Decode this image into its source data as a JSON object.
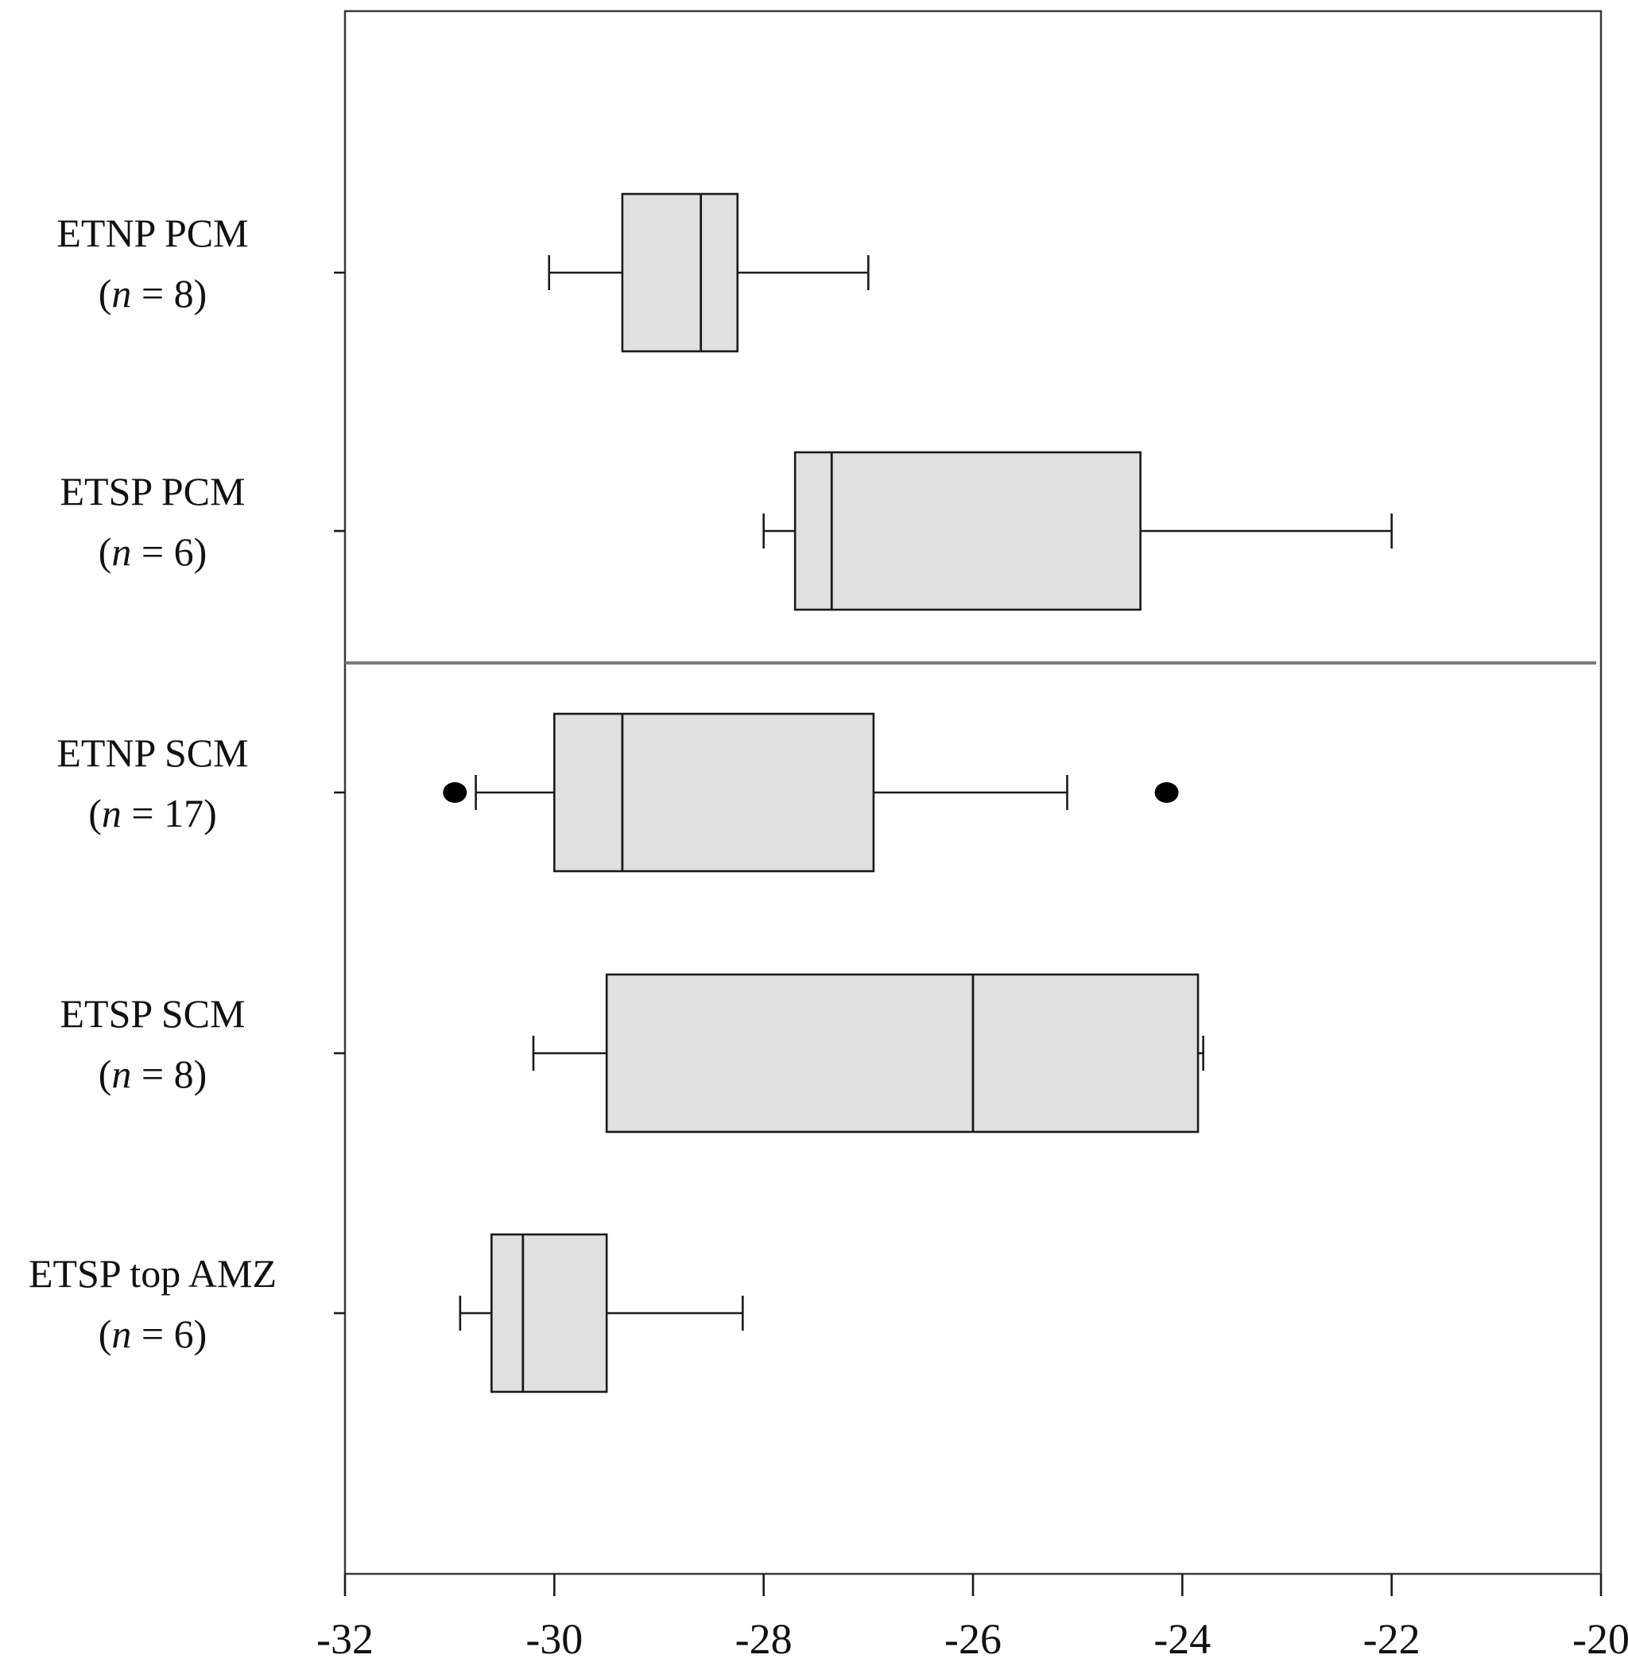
{
  "chart_data": {
    "type": "boxplot",
    "orientation": "horizontal",
    "xlim": [
      -32,
      -20
    ],
    "xticks": [
      -32,
      -30,
      -28,
      -26,
      -24,
      -22,
      -20
    ],
    "xtick_labels": [
      "-32",
      "-30",
      "-28",
      "-26",
      "-24",
      "-22",
      "-20"
    ],
    "grid": false,
    "groups": [
      {
        "label": "ETNP PCM",
        "n_text": "= 8)",
        "whisker_low": -30.05,
        "q1": -29.35,
        "median": -28.6,
        "q3": -28.25,
        "whisker_high": -27.0,
        "outliers": []
      },
      {
        "label": "ETSP PCM",
        "n_text": "= 6)",
        "whisker_low": -28.0,
        "q1": -27.7,
        "median": -27.35,
        "q3": -24.4,
        "whisker_high": -22.0,
        "outliers": []
      },
      {
        "label": "ETNP SCM",
        "n_text": "= 17)",
        "whisker_low": -30.75,
        "q1": -30.0,
        "median": -29.35,
        "q3": -26.95,
        "whisker_high": -25.1,
        "outliers": [
          -30.95,
          -24.15
        ]
      },
      {
        "label": "ETSP SCM",
        "n_text": "= 8)",
        "whisker_low": -30.2,
        "q1": -29.5,
        "median": -26.0,
        "q3": -23.85,
        "whisker_high": -23.8,
        "outliers": []
      },
      {
        "label": "ETSP top AMZ",
        "n_text": "= 6)",
        "whisker_low": -30.9,
        "q1": -30.6,
        "median": -30.3,
        "q3": -29.5,
        "whisker_high": -28.2,
        "outliers": []
      }
    ]
  }
}
